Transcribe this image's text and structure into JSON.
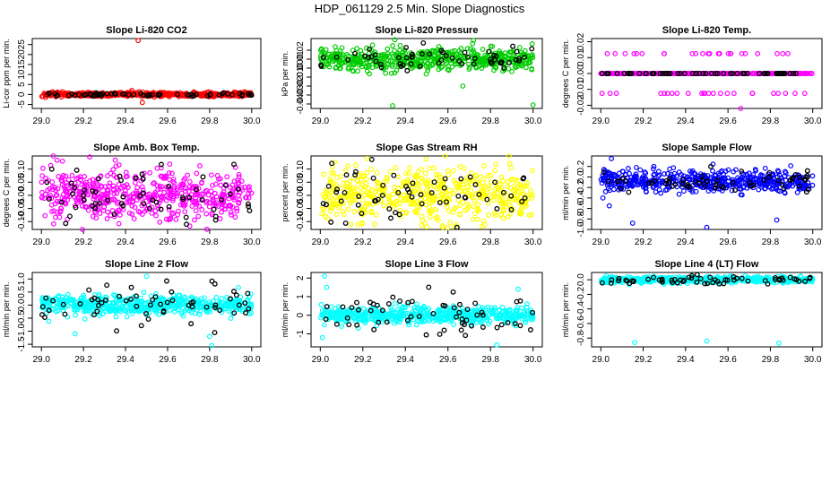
{
  "figure_title": "HDP_061129  2.5 Min. Slope Diagnostics",
  "colors": {
    "axis": "#000000",
    "highlight": "#000000"
  },
  "chart_data": [
    {
      "type": "scatter",
      "title": "Slope Li-820 CO2",
      "ylabel": "Li-cor ppm per min.",
      "color": "#ff0000",
      "xlim": [
        29.0,
        30.0
      ],
      "ylim": [
        -7,
        28
      ],
      "xticks": [
        29.0,
        29.2,
        29.4,
        29.6,
        29.8,
        30.0
      ],
      "xtick_labels": [
        "29.0",
        "29.2",
        "29.4",
        "29.6",
        "29.8",
        "30.0"
      ],
      "yticks": [
        -5,
        0,
        5,
        10,
        15,
        20,
        25
      ],
      "ytick_labels": [
        "-5",
        "0",
        "5",
        "10",
        "15",
        "20",
        "25"
      ],
      "base": 0,
      "spread": 0.5,
      "black_spread": 0.4,
      "outliers": [
        {
          "x": 29.46,
          "y": 27
        },
        {
          "x": 29.43,
          "y": 2
        },
        {
          "x": 29.48,
          "y": -4
        },
        {
          "x": 29.02,
          "y": -1.5
        }
      ]
    },
    {
      "type": "scatter",
      "title": "Slope Li-820 Pressure",
      "ylabel": "kPa per min.",
      "color": "#00cc00",
      "xlim": [
        29.0,
        30.0
      ],
      "ylim": [
        -0.045,
        0.033
      ],
      "xticks": [
        29.0,
        29.2,
        29.4,
        29.6,
        29.8,
        30.0
      ],
      "xtick_labels": [
        "29.0",
        "29.2",
        "29.4",
        "29.6",
        "29.8",
        "30.0"
      ],
      "yticks": [
        -0.04,
        -0.03,
        -0.02,
        -0.01,
        0.0,
        0.01,
        0.02
      ],
      "ytick_labels": [
        "-0.04",
        "-0.03",
        "-0.02",
        "-0.01",
        "0.00",
        "0.01",
        "0.02"
      ],
      "base": 0.0095,
      "spread": 0.006,
      "black_spread": 0.007,
      "outliers": [
        {
          "x": 29.34,
          "y": -0.042
        },
        {
          "x": 30.0,
          "y": -0.041
        },
        {
          "x": 29.67,
          "y": -0.02
        },
        {
          "x": 29.72,
          "y": 0.031
        }
      ]
    },
    {
      "type": "scatter",
      "title": "Slope Li-820 Temp.",
      "ylabel": "degrees C per min.",
      "color": "#ff00ff",
      "xlim": [
        29.0,
        30.0
      ],
      "ylim": [
        -0.022,
        0.022
      ],
      "xticks": [
        29.0,
        29.2,
        29.4,
        29.6,
        29.8,
        30.0
      ],
      "xtick_labels": [
        "29.0",
        "29.2",
        "29.4",
        "29.6",
        "29.8",
        "30.0"
      ],
      "yticks": [
        -0.02,
        -0.01,
        0.0,
        0.01,
        0.02
      ],
      "ytick_labels": [
        "-0.02",
        "-0.01",
        "0.00",
        "0.01",
        "0.02"
      ],
      "base": 0,
      "spread": 0,
      "black_spread": 0,
      "quantized": 0.0125,
      "outliers": [
        {
          "x": 29.66,
          "y": -0.025
        }
      ]
    },
    {
      "type": "scatter",
      "title": "Slope Amb. Box Temp.",
      "ylabel": "degrees C per min.",
      "color": "#ff00ff",
      "xlim": [
        29.0,
        30.0
      ],
      "ylim": [
        -0.13,
        0.15
      ],
      "xticks": [
        29.0,
        29.2,
        29.4,
        29.6,
        29.8,
        30.0
      ],
      "xtick_labels": [
        "29.0",
        "29.2",
        "29.4",
        "29.6",
        "29.8",
        "30.0"
      ],
      "yticks": [
        -0.1,
        -0.05,
        0.0,
        0.05,
        0.1
      ],
      "ytick_labels": [
        "-0.10",
        "-0.05",
        "0.00",
        "0.05",
        "0.10"
      ],
      "base": 0,
      "spread": 0.05,
      "black_spread": 0.05,
      "outliers": [
        {
          "x": 29.1,
          "y": 0.13
        }
      ]
    },
    {
      "type": "scatter",
      "title": "Slope Gas Stream RH",
      "ylabel": "percent per min.",
      "color": "#ffff00",
      "xlim": [
        29.0,
        30.0
      ],
      "ylim": [
        -0.13,
        0.15
      ],
      "xticks": [
        29.0,
        29.2,
        29.4,
        29.6,
        29.8,
        30.0
      ],
      "xtick_labels": [
        "29.0",
        "29.2",
        "29.4",
        "29.6",
        "29.8",
        "30.0"
      ],
      "yticks": [
        -0.1,
        -0.05,
        0.0,
        0.05,
        0.1
      ],
      "ytick_labels": [
        "-0.10",
        "-0.05",
        "0.00",
        "0.05",
        "0.10"
      ],
      "base": 0,
      "spread": 0.05,
      "black_spread": 0.05,
      "outliers": [
        {
          "x": 29.22,
          "y": 0.14
        },
        {
          "x": 29.5,
          "y": -0.12
        }
      ]
    },
    {
      "type": "scatter",
      "title": "Slope Sample Flow",
      "ylabel": "ml/min per min.",
      "color": "#0000ff",
      "xlim": [
        29.0,
        30.0
      ],
      "ylim": [
        -1.0,
        0.4
      ],
      "xticks": [
        29.0,
        29.2,
        29.4,
        29.6,
        29.8,
        30.0
      ],
      "xtick_labels": [
        "29.0",
        "29.2",
        "29.4",
        "29.6",
        "29.8",
        "30.0"
      ],
      "yticks": [
        -1.0,
        -0.8,
        -0.6,
        -0.4,
        -0.2,
        0.0,
        0.2
      ],
      "ytick_labels": [
        "-1.0",
        "-0.8",
        "-0.6",
        "-0.4",
        "-0.2",
        "0.0",
        "0.2"
      ],
      "base": -0.08,
      "spread": 0.1,
      "black_spread": 0.1,
      "outliers": [
        {
          "x": 29.01,
          "y": -0.4
        },
        {
          "x": 29.04,
          "y": -0.55
        },
        {
          "x": 29.05,
          "y": 0.35
        },
        {
          "x": 29.15,
          "y": -0.88
        },
        {
          "x": 29.5,
          "y": -0.96
        },
        {
          "x": 29.83,
          "y": -0.82
        }
      ]
    },
    {
      "type": "scatter",
      "title": "Slope Line 2 Flow",
      "ylabel": "ml/min per min.",
      "color": "#00ffff",
      "xlim": [
        29.0,
        30.0
      ],
      "ylim": [
        -1.6,
        1.25
      ],
      "xticks": [
        29.0,
        29.2,
        29.4,
        29.6,
        29.8,
        30.0
      ],
      "xtick_labels": [
        "29.0",
        "29.2",
        "29.4",
        "29.6",
        "29.8",
        "30.0"
      ],
      "yticks": [
        -1.5,
        -1.0,
        -0.5,
        0.0,
        0.5,
        1.0
      ],
      "ytick_labels": [
        "-1.5",
        "-1.0",
        "-0.5",
        "0.0",
        "0.5",
        "1.0"
      ],
      "base": 0,
      "spread": 0.18,
      "black_spread": 0.45,
      "outliers": [
        {
          "x": 29.5,
          "y": 1.1
        },
        {
          "x": 29.81,
          "y": -1.55
        },
        {
          "x": 29.8,
          "y": -1.2
        },
        {
          "x": 29.16,
          "y": -1.1
        }
      ]
    },
    {
      "type": "scatter",
      "title": "Slope Line 3 Flow",
      "ylabel": "ml/min per min.",
      "color": "#00ffff",
      "xlim": [
        29.0,
        30.0
      ],
      "ylim": [
        -1.7,
        2.3
      ],
      "xticks": [
        29.0,
        29.2,
        29.4,
        29.6,
        29.8,
        30.0
      ],
      "xtick_labels": [
        "29.0",
        "29.2",
        "29.4",
        "29.6",
        "29.8",
        "30.0"
      ],
      "yticks": [
        -1,
        0,
        1,
        2
      ],
      "ytick_labels": [
        "-1",
        "0",
        "1",
        "2"
      ],
      "base": 0,
      "spread": 0.22,
      "black_spread": 0.6,
      "outliers": [
        {
          "x": 29.02,
          "y": 2.1
        },
        {
          "x": 29.03,
          "y": 1.5
        },
        {
          "x": 29.01,
          "y": -1.2
        },
        {
          "x": 29.83,
          "y": -1.6
        },
        {
          "x": 29.93,
          "y": 1.4
        }
      ]
    },
    {
      "type": "scatter",
      "title": "Slope Line 4 (LT) Flow",
      "ylabel": "ml/min per min.",
      "color": "#00ffff",
      "xlim": [
        29.0,
        30.0
      ],
      "ylim": [
        -0.92,
        0.1
      ],
      "xticks": [
        29.0,
        29.2,
        29.4,
        29.6,
        29.8,
        30.0
      ],
      "xtick_labels": [
        "29.0",
        "29.2",
        "29.4",
        "29.6",
        "29.8",
        "30.0"
      ],
      "yticks": [
        -0.8,
        -0.6,
        -0.4,
        -0.2,
        0.0
      ],
      "ytick_labels": [
        "-0.8",
        "-0.6",
        "-0.4",
        "-0.2",
        "0.0"
      ],
      "base": 0,
      "spread": 0.02,
      "black_spread": 0.03,
      "outliers": [
        {
          "x": 29.16,
          "y": -0.86
        },
        {
          "x": 29.5,
          "y": -0.84
        },
        {
          "x": 29.84,
          "y": -0.87
        }
      ]
    }
  ]
}
